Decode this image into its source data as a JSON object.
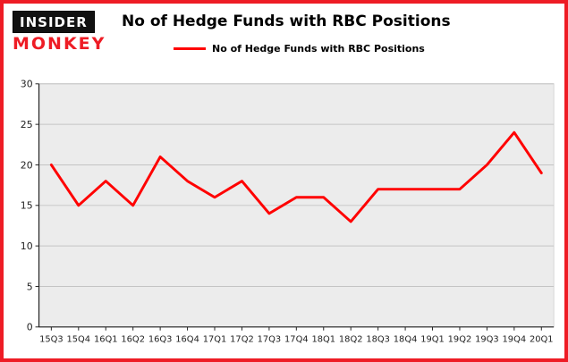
{
  "brand": {
    "line1": "INSIDER",
    "line2": "MONKEY"
  },
  "title": "No of Hedge Funds with RBC Positions",
  "legend": {
    "label": "No of Hedge Funds with RBC Positions",
    "color": "#ff0000"
  },
  "colors": {
    "frame": "#ee1c25",
    "series": "#ff0000",
    "plot_bg": "#ececec",
    "grid": "#c4c4c4",
    "axis": "#222222"
  },
  "chart_data": {
    "type": "line",
    "title": "No of Hedge Funds with RBC Positions",
    "categories": [
      "15Q3",
      "15Q4",
      "16Q1",
      "16Q2",
      "16Q3",
      "16Q4",
      "17Q1",
      "17Q2",
      "17Q3",
      "17Q4",
      "18Q1",
      "18Q2",
      "18Q3",
      "18Q4",
      "19Q1",
      "19Q2",
      "19Q3",
      "19Q4",
      "20Q1"
    ],
    "values": [
      20,
      15,
      18,
      15,
      21,
      18,
      16,
      18,
      14,
      16,
      16,
      13,
      17,
      17,
      17,
      17,
      20,
      24,
      19
    ],
    "series_name": "No of Hedge Funds with RBC Positions",
    "series_color": "#ff0000",
    "xlabel": "",
    "ylabel": "",
    "ylim": [
      0,
      30
    ],
    "yticks": [
      0,
      5,
      10,
      15,
      20,
      25,
      30
    ],
    "grid": true,
    "legend_position": "top-left"
  }
}
